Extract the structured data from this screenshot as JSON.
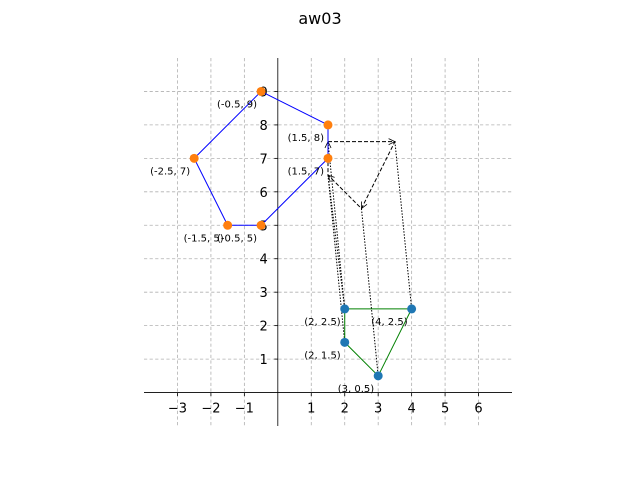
{
  "chart_data": {
    "type": "line",
    "title": "aw03",
    "xlabel": "",
    "ylabel": "",
    "xlim": [
      -4,
      7
    ],
    "ylim": [
      -1,
      10
    ],
    "grid": true,
    "x_ticks": [
      -3,
      -2,
      -1,
      1,
      2,
      3,
      4,
      5,
      6
    ],
    "x_tick_labels": [
      "−3",
      "−2",
      "−1",
      "1",
      "2",
      "3",
      "4",
      "5",
      "6"
    ],
    "y_ticks": [
      1,
      2,
      3,
      4,
      5,
      6,
      7,
      8,
      9
    ],
    "y_tick_labels": [
      "1",
      "2",
      "3",
      "4",
      "5",
      "6",
      "7",
      "8",
      "9"
    ],
    "series": [
      {
        "color": "#0000ff",
        "marker_color": "#ff7f0e",
        "closed": true,
        "points": [
          {
            "x": -0.5,
            "y": 9,
            "label": "(-0.5, 9)"
          },
          {
            "x": 1.5,
            "y": 8,
            "label": "(1.5, 8)"
          },
          {
            "x": 1.5,
            "y": 7,
            "label": "(1.5, 7)"
          },
          {
            "x": -0.5,
            "y": 5,
            "label": "(-0.5, 5)"
          },
          {
            "x": -1.5,
            "y": 5,
            "label": "(-1.5, 5)"
          },
          {
            "x": -2.5,
            "y": 7,
            "label": "(-2.5, 7)"
          }
        ]
      },
      {
        "color": "#008000",
        "marker_color": "#1f77b4",
        "closed": true,
        "points": [
          {
            "x": 2,
            "y": 2.5,
            "label": "(2, 2.5)"
          },
          {
            "x": 4,
            "y": 2.5,
            "label": "(4, 2.5)"
          },
          {
            "x": 3,
            "y": 0.5,
            "label": "(3, 0.5)"
          },
          {
            "x": 2,
            "y": 1.5,
            "label": "(2, 1.5)"
          }
        ]
      }
    ],
    "dashed_path": {
      "color": "#000000",
      "points": [
        [
          1.5,
          7.5
        ],
        [
          3.5,
          7.5
        ],
        [
          2.5,
          5.5
        ],
        [
          1.5,
          6.5
        ],
        [
          1.5,
          7.5
        ]
      ]
    },
    "dotted_segments": {
      "color": "#000000",
      "segments": [
        [
          [
            1.5,
            7.5
          ],
          [
            2,
            2.5
          ]
        ],
        [
          [
            3.5,
            7.5
          ],
          [
            4,
            2.5
          ]
        ],
        [
          [
            2.5,
            5.5
          ],
          [
            3,
            0.5
          ]
        ],
        [
          [
            1.5,
            6.5
          ],
          [
            2,
            1.5
          ]
        ],
        [
          [
            1.5,
            6.5
          ],
          [
            2,
            2.5
          ]
        ]
      ]
    }
  }
}
